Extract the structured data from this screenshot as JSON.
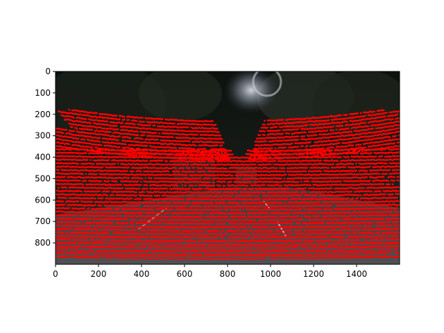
{
  "figure": {
    "image_description": "night-time street scene with LiDAR projection points overlaid",
    "point_color": "#ff0000",
    "frame_color": "#000000",
    "background": "#ffffff"
  },
  "axes": {
    "x_ticks": [
      0,
      200,
      400,
      600,
      800,
      1000,
      1200,
      1400
    ],
    "y_ticks": [
      0,
      100,
      200,
      300,
      400,
      500,
      600,
      700,
      800
    ],
    "x_range": [
      0,
      1600
    ],
    "y_range": [
      0,
      900
    ],
    "y_inverted": true
  }
}
